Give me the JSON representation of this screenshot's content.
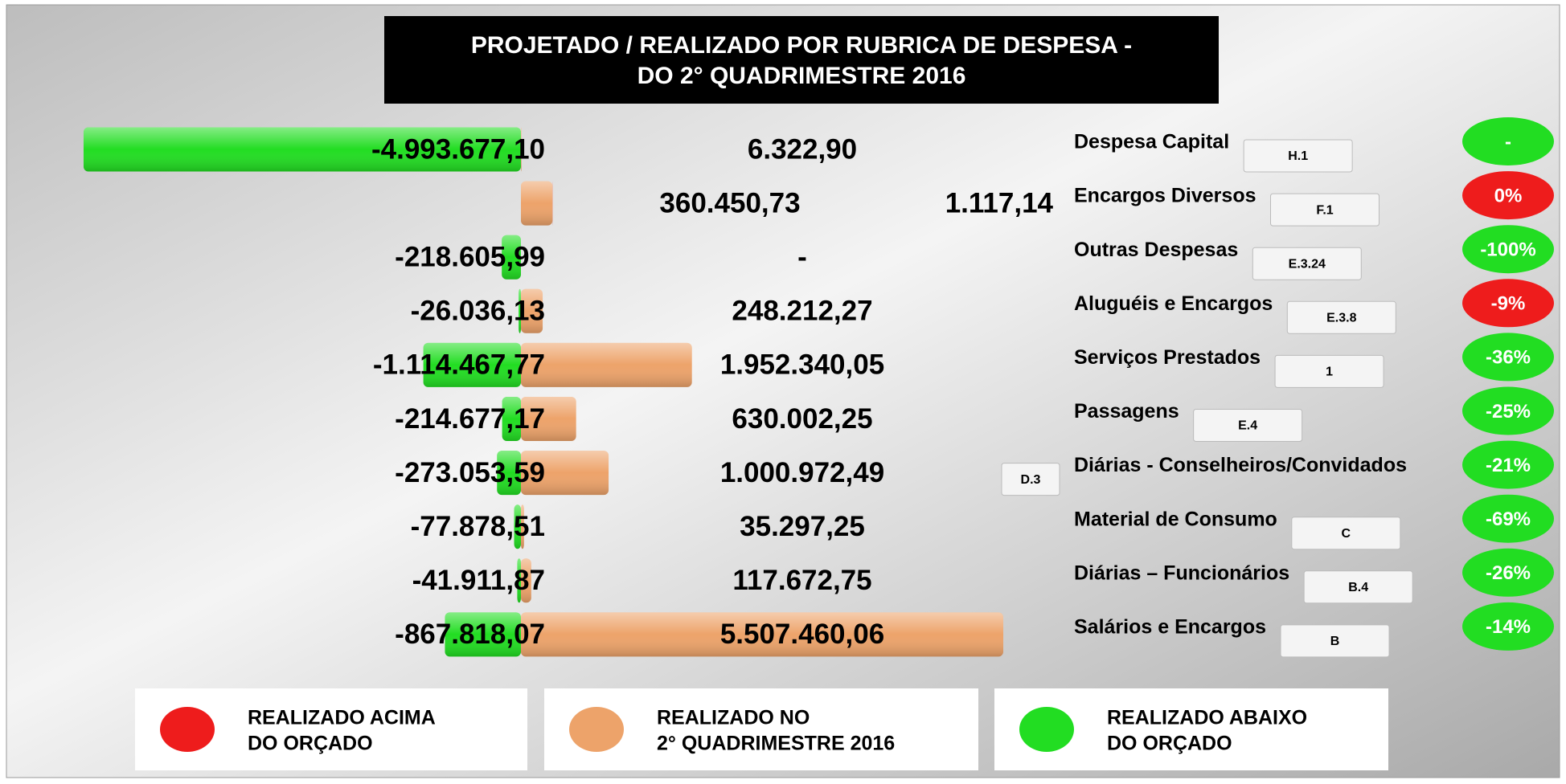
{
  "chart_data": {
    "type": "diverging_bar",
    "title_lines": [
      "PROJETADO / REALIZADO POR RUBRICA DE DESPESA -",
      "DO 2° QUADRIMESTRE 2016"
    ],
    "categories": [
      "Despesa Capital",
      "Encargos Diversos",
      "Outras Despesas",
      "Aluguéis e Encargos",
      "Serviços Prestados",
      "Passagens",
      "Diárias - Conselheiros/Convidados",
      "Material de Consumo",
      "Diárias – Funcionários",
      "Salários e Encargos"
    ],
    "codes": [
      "H.1",
      "F.1",
      "E.3.24",
      "E.3.8",
      "1",
      "E.4",
      "D.3",
      "C",
      "B.4",
      "B"
    ],
    "series": [
      {
        "name": "REALIZADO ABAIXO DO ORÇADO",
        "color": "#22dd22",
        "values": [
          -4993677.1,
          null,
          -218605.99,
          -26036.13,
          -1114467.77,
          -214677.17,
          -273053.59,
          -77878.51,
          -41911.87,
          -867818.07
        ],
        "value_labels": [
          "-4.993.677,10",
          null,
          "-218.605,99",
          "-26.036,13",
          "-1.114.467,77",
          "-214.677,17",
          "-273.053,59",
          "-77.878,51",
          "-41.911,87",
          "-867.818,07"
        ]
      },
      {
        "name": "REALIZADO NO 2° QUADRIMESTRE 2016",
        "color": "#eda36a",
        "values": [
          6322.9,
          360450.73,
          0,
          248212.27,
          1952340.05,
          630002.25,
          1000972.49,
          35297.25,
          117672.75,
          5507460.06
        ],
        "value_labels": [
          "6.322,90",
          "360.450,73",
          "-",
          "248.212,27",
          "1.952.340,05",
          "630.002,25",
          "1.000.972,49",
          "35.297,25",
          "117.672,75",
          "5.507.460,06"
        ]
      },
      {
        "name": "REALIZADO ACIMA DO ORÇADO",
        "color": "#ee1c1c",
        "values": [
          null,
          1117.14,
          null,
          null,
          null,
          null,
          null,
          null,
          null,
          null
        ],
        "value_labels": [
          null,
          "1.117,14",
          null,
          null,
          null,
          null,
          null,
          null,
          null,
          null
        ]
      }
    ],
    "percent_labels": [
      "-",
      "0%",
      "-100%",
      "-9%",
      "-36%",
      "-25%",
      "-21%",
      "-69%",
      "-26%",
      "-14%"
    ],
    "percent_colors": [
      "#22dd22",
      "#ee1c1c",
      "#22dd22",
      "#ee1c1c",
      "#22dd22",
      "#22dd22",
      "#22dd22",
      "#22dd22",
      "#22dd22",
      "#22dd22"
    ],
    "legend": [
      {
        "lines": [
          "REALIZADO ACIMA",
          "DO ORÇADO"
        ],
        "color": "#ee1c1c"
      },
      {
        "lines": [
          "REALIZADO NO",
          "2° QUADRIMESTRE 2016"
        ],
        "color": "#eda36a"
      },
      {
        "lines": [
          "REALIZADO ABAIXO",
          "DO ORÇADO"
        ],
        "color": "#22dd22"
      }
    ]
  }
}
